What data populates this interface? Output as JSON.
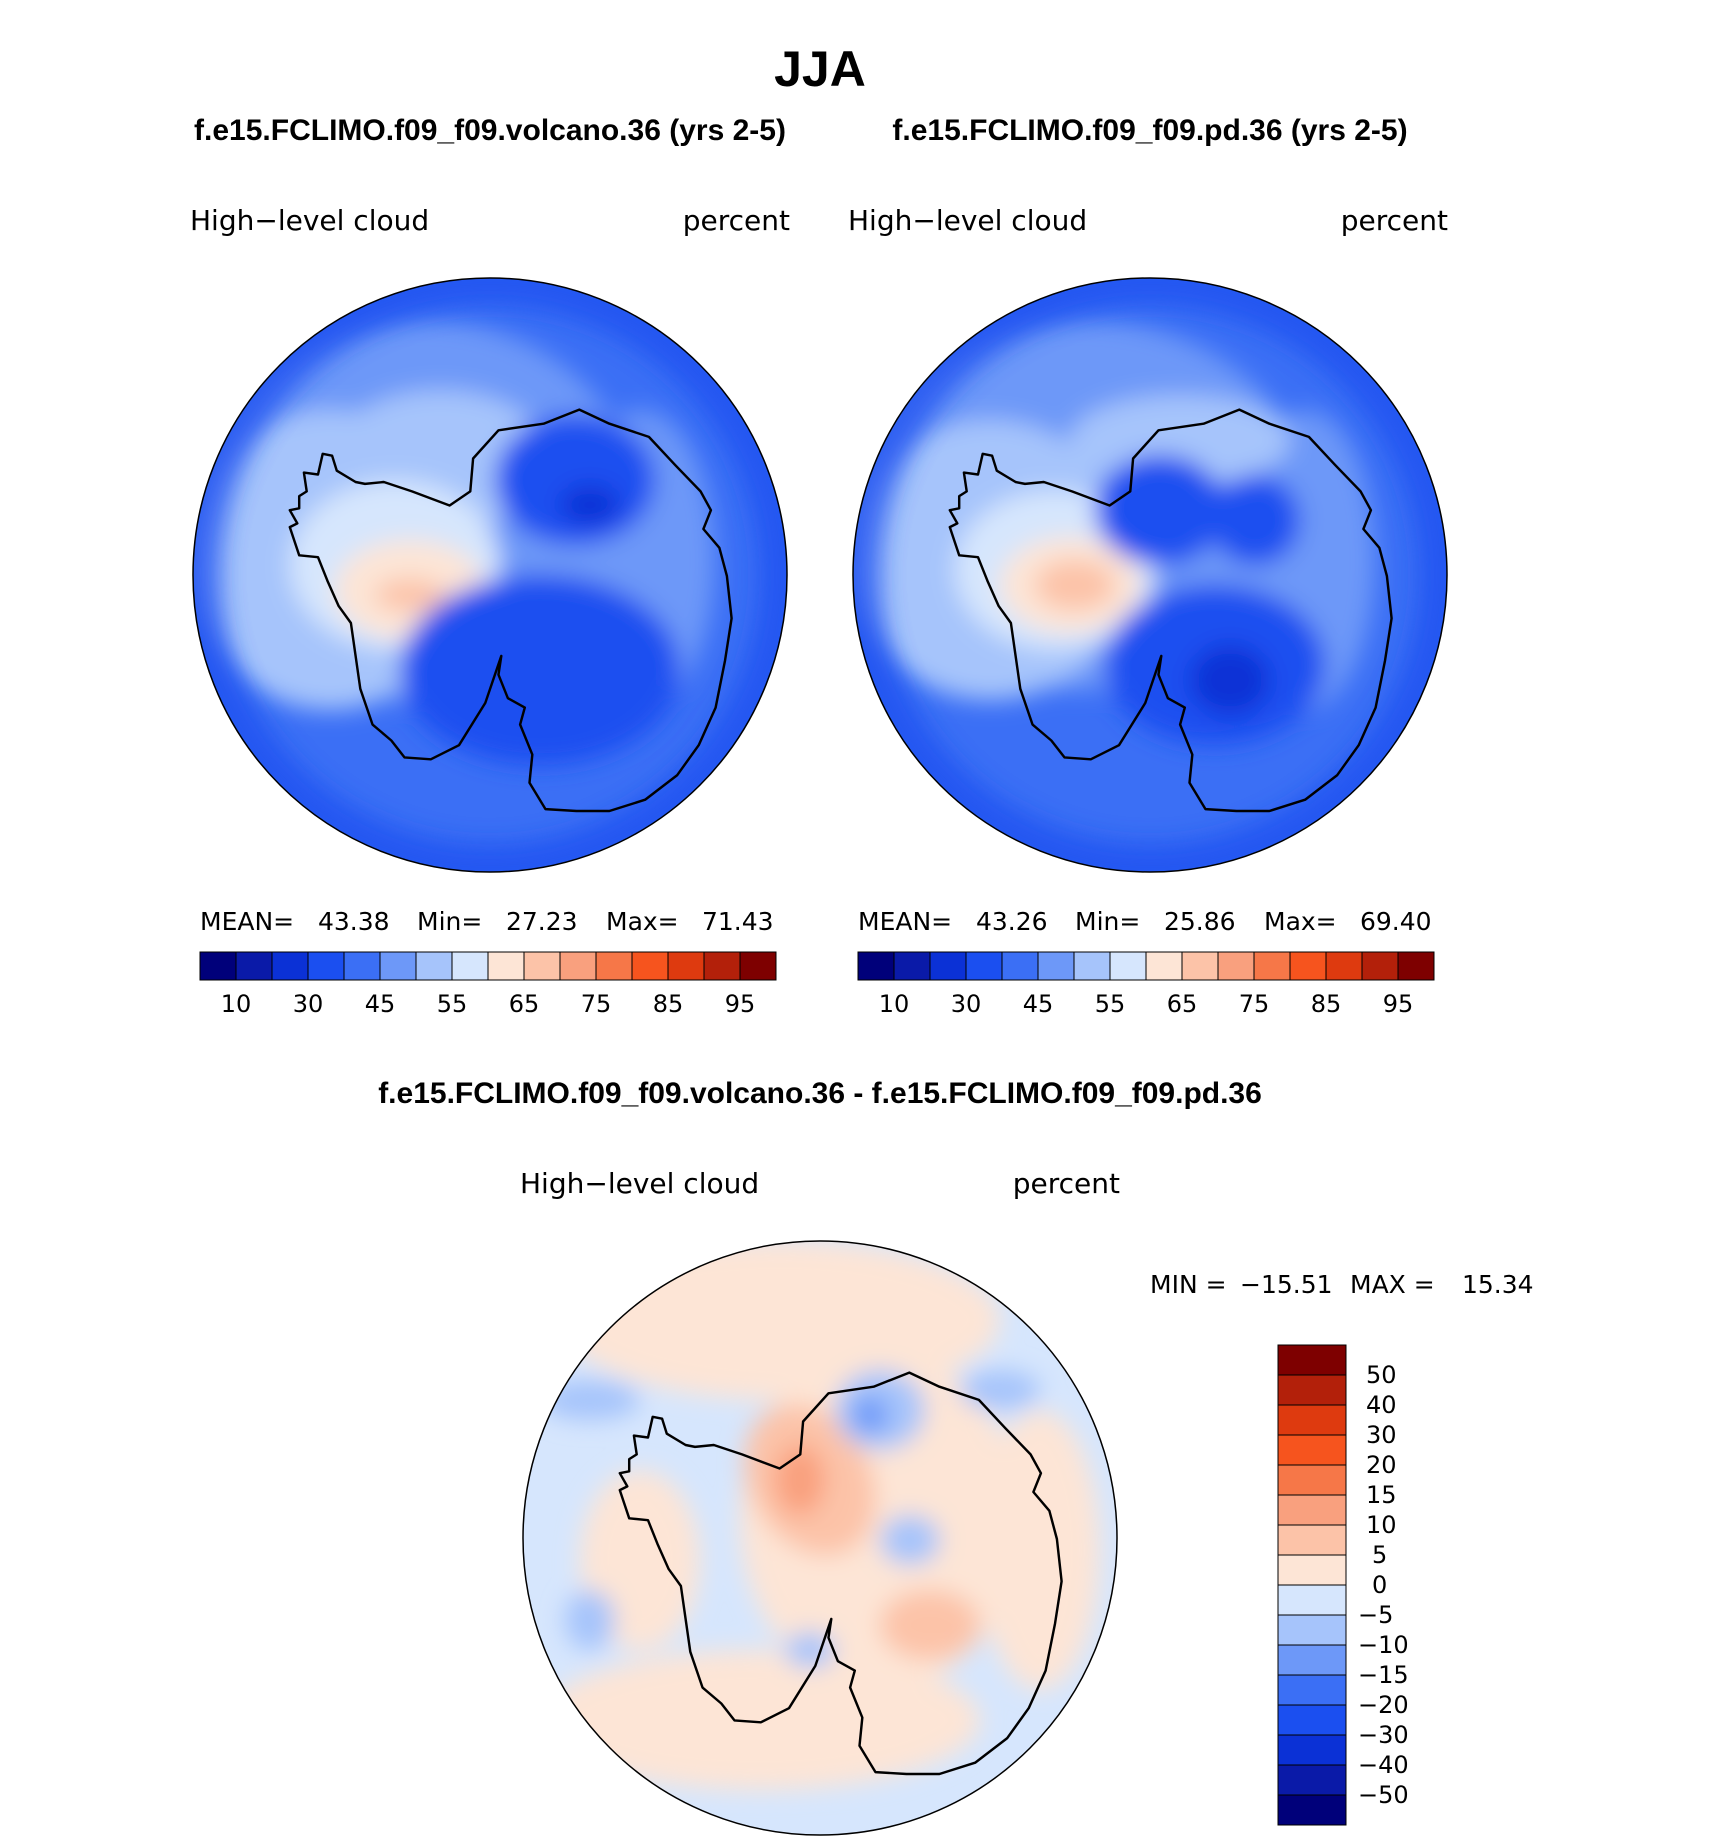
{
  "title": "JJA",
  "palette": [
    "#00007a",
    "#0a1aa8",
    "#0b31d6",
    "#1b4ff0",
    "#3b6ff5",
    "#6d98f8",
    "#a6c4fb",
    "#d6e6fd",
    "#fde5d6",
    "#fcc3a8",
    "#f9a07e",
    "#f67748",
    "#f6541e",
    "#de3a0f",
    "#b3200a",
    "#7e0000"
  ],
  "colors": {
    "coastline": "#000000"
  },
  "panels": [
    {
      "id": "volcano",
      "title": "f.e15.FCLIMO.f09_f09.volcano.36 (yrs 2-5)",
      "field_label": "High−level cloud",
      "units_label": "percent",
      "stats": {
        "mean_label": "MEAN=",
        "mean": "43.38",
        "min_label": "Min=",
        "min": "27.23",
        "max_label": "Max=",
        "max": "71.43"
      },
      "colorbar_labels": [
        "10",
        "30",
        "45",
        "55",
        "65",
        "75",
        "85",
        "95"
      ],
      "levels": [
        5,
        10,
        20,
        30,
        40,
        45,
        50,
        55,
        60,
        65,
        70,
        75,
        80,
        85,
        90,
        95
      ]
    },
    {
      "id": "pd",
      "title": "f.e15.FCLIMO.f09_f09.pd.36 (yrs 2-5)",
      "field_label": "High−level cloud",
      "units_label": "percent",
      "stats": {
        "mean_label": "MEAN=",
        "mean": "43.26",
        "min_label": "Min=",
        "min": "25.86",
        "max_label": "Max=",
        "max": "69.40"
      },
      "colorbar_labels": [
        "10",
        "30",
        "45",
        "55",
        "65",
        "75",
        "85",
        "95"
      ],
      "levels": [
        5,
        10,
        20,
        30,
        40,
        45,
        50,
        55,
        60,
        65,
        70,
        75,
        80,
        85,
        90,
        95
      ]
    },
    {
      "id": "diff",
      "title": "f.e15.FCLIMO.f09_f09.volcano.36 - f.e15.FCLIMO.f09_f09.pd.36",
      "field_label": "High−level cloud",
      "units_label": "percent",
      "stats": {
        "min_label": "MIN =",
        "min": "−15.51",
        "max_label": "MAX =",
        "max": "15.34"
      },
      "colorbar_labels": [
        "50",
        "40",
        "30",
        "20",
        "15",
        "10",
        "5",
        "0",
        "−5",
        "−10",
        "−15",
        "−20",
        "−30",
        "−40",
        "−50"
      ],
      "levels": [
        -50,
        -40,
        -30,
        -20,
        -15,
        -10,
        -5,
        0,
        5,
        10,
        15,
        20,
        30,
        40,
        50
      ]
    }
  ]
}
